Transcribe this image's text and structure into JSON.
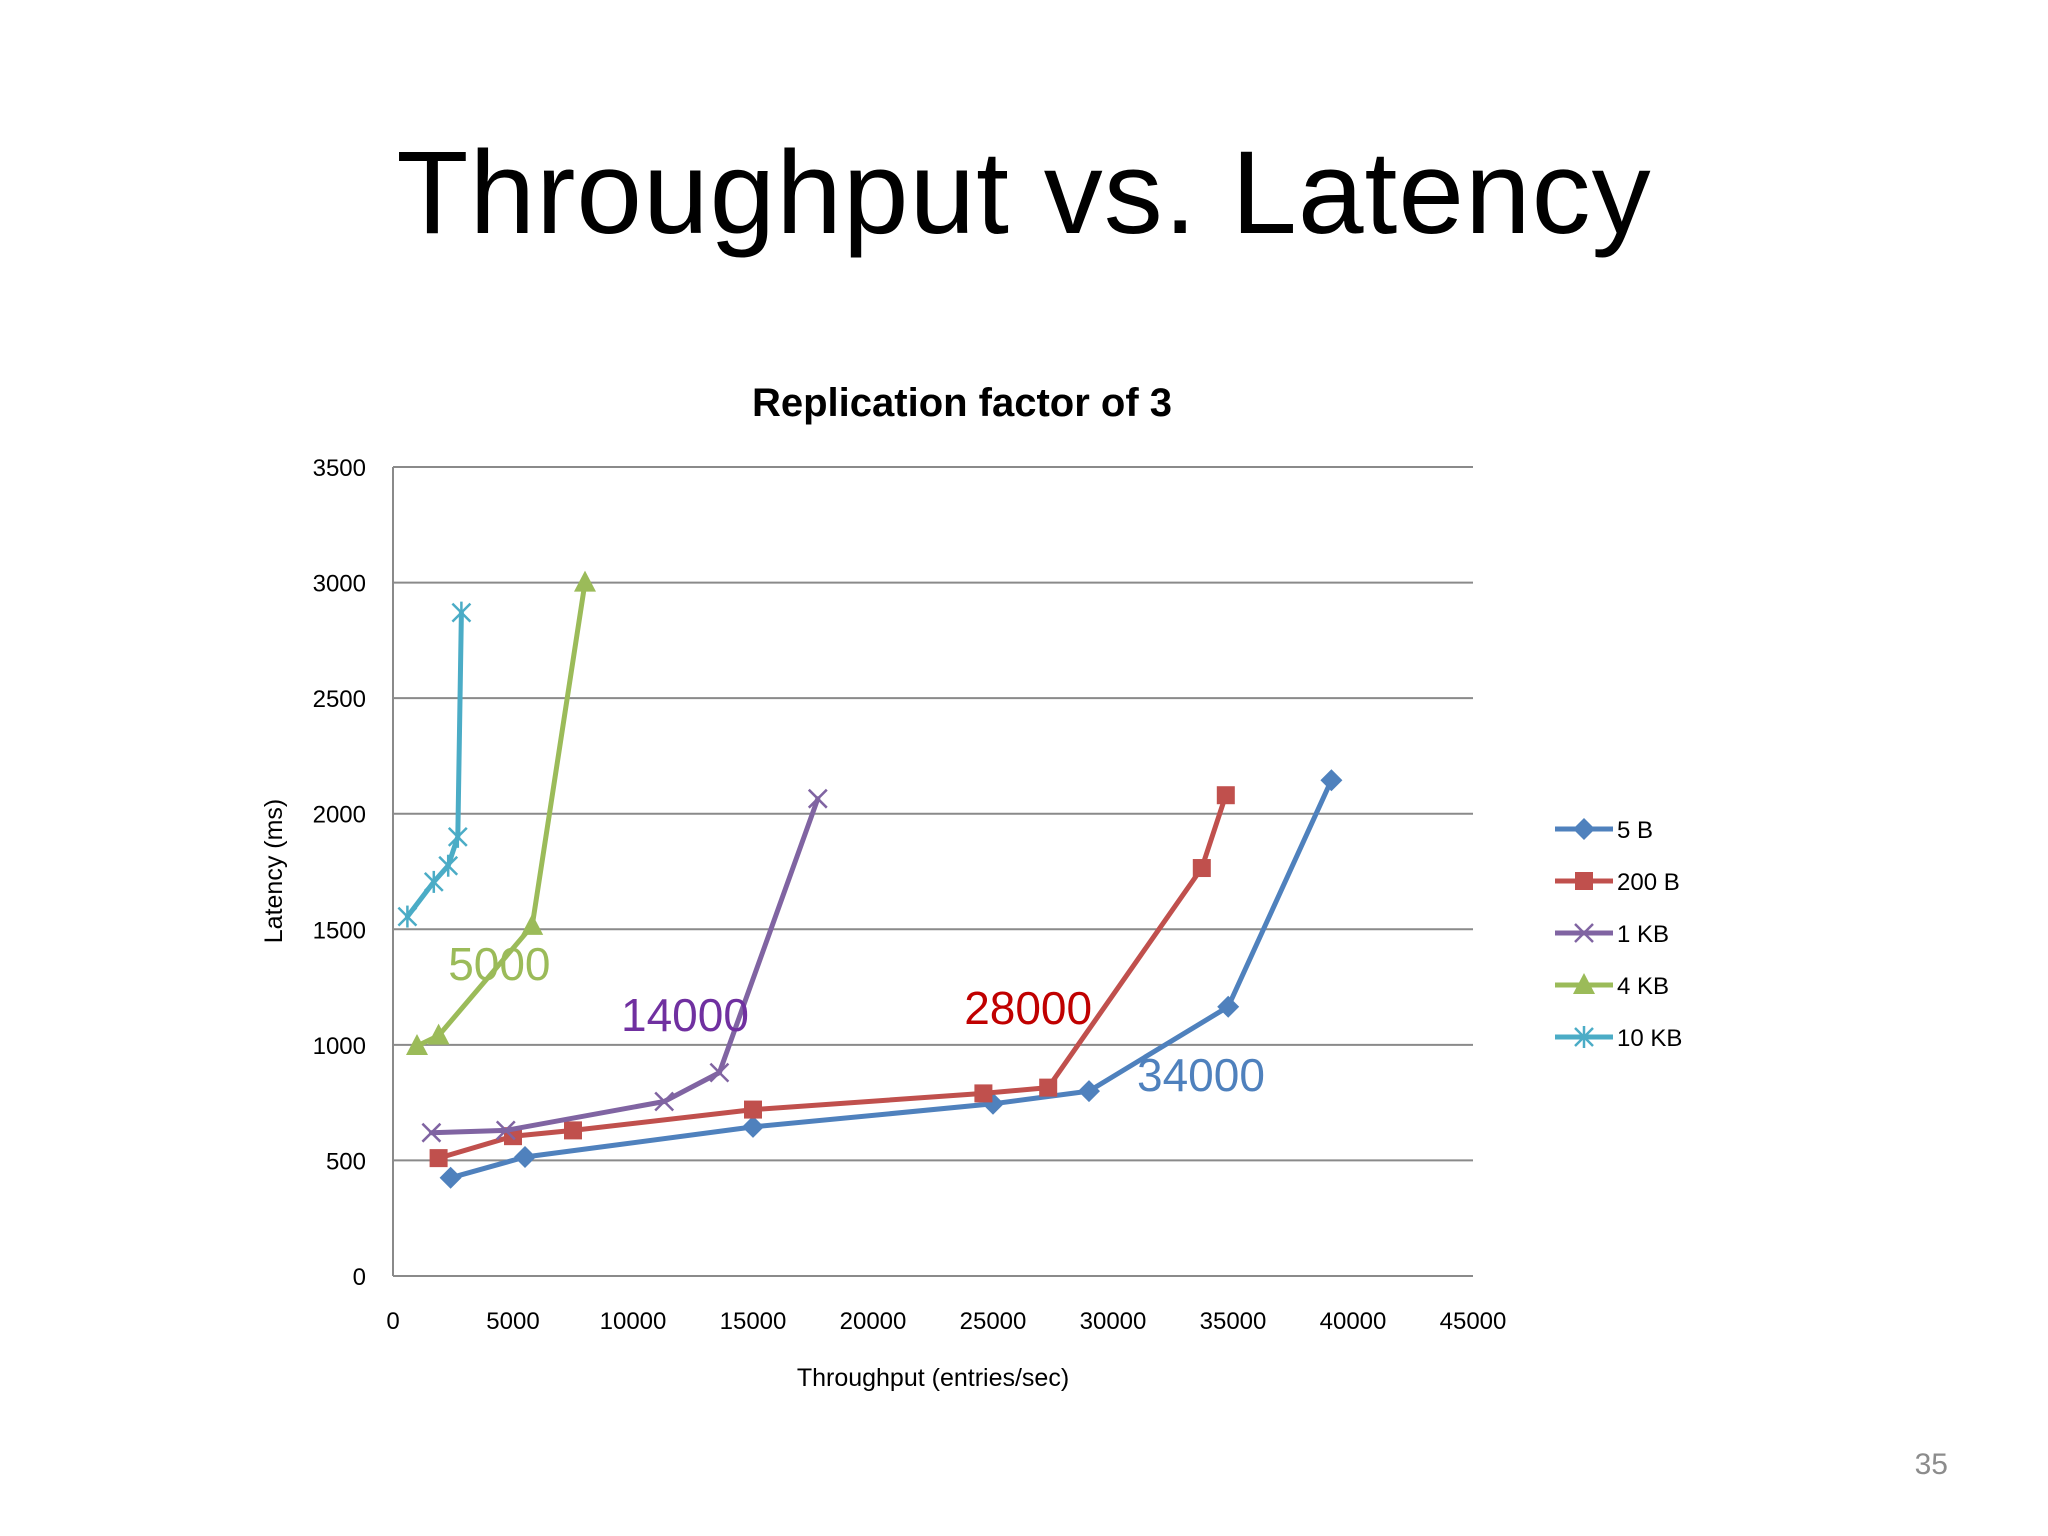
{
  "slide": {
    "title": "Throughput vs. Latency",
    "page_number": "35"
  },
  "chart_data": {
    "type": "line",
    "title": "Replication factor of 3",
    "xlabel": "Throughput (entries/sec)",
    "ylabel": "Latency (ms)",
    "xlim": [
      0,
      45000
    ],
    "ylim": [
      0,
      3500
    ],
    "x_ticks": [
      "0",
      "5000",
      "10000",
      "15000",
      "20000",
      "25000",
      "30000",
      "35000",
      "40000",
      "45000"
    ],
    "y_ticks": [
      "0",
      "500",
      "1000",
      "1500",
      "2000",
      "2500",
      "3000",
      "3500"
    ],
    "grid": "horizontal",
    "legend_position": "right",
    "series": [
      {
        "name": "5 B",
        "color": "#4f81bd",
        "marker": "diamond",
        "points": [
          [
            2400,
            425
          ],
          [
            5500,
            515
          ],
          [
            15000,
            645
          ],
          [
            25000,
            745
          ],
          [
            29000,
            800
          ],
          [
            34800,
            1165
          ],
          [
            39100,
            2145
          ]
        ]
      },
      {
        "name": "200 B",
        "color": "#c0504d",
        "marker": "square",
        "points": [
          [
            1900,
            510
          ],
          [
            5000,
            605
          ],
          [
            7500,
            630
          ],
          [
            15000,
            720
          ],
          [
            24600,
            790
          ],
          [
            27300,
            815
          ],
          [
            33700,
            1765
          ],
          [
            34700,
            2080
          ]
        ]
      },
      {
        "name": "1 KB",
        "color": "#8064a2",
        "marker": "x",
        "points": [
          [
            1600,
            620
          ],
          [
            4700,
            630
          ],
          [
            11300,
            755
          ],
          [
            13600,
            880
          ],
          [
            17700,
            2065
          ]
        ]
      },
      {
        "name": "4 KB",
        "color": "#9bbb59",
        "marker": "triangle",
        "points": [
          [
            1000,
            995
          ],
          [
            1900,
            1040
          ],
          [
            5800,
            1515
          ],
          [
            8000,
            3000
          ]
        ]
      },
      {
        "name": "10 KB",
        "color": "#4bacc6",
        "marker": "star",
        "points": [
          [
            600,
            1555
          ],
          [
            1700,
            1705
          ],
          [
            2300,
            1775
          ],
          [
            2700,
            1900
          ],
          [
            2850,
            2870
          ]
        ]
      }
    ],
    "annotations": [
      {
        "text": "5000",
        "color": "#9bbb59",
        "x": 2300,
        "y": 1280
      },
      {
        "text": "14000",
        "color": "#7030a0",
        "x": 9500,
        "y": 1060
      },
      {
        "text": "28000",
        "color": "#c00000",
        "x": 23800,
        "y": 1090
      },
      {
        "text": "34000",
        "color": "#4f81bd",
        "x": 31000,
        "y": 800
      }
    ]
  }
}
